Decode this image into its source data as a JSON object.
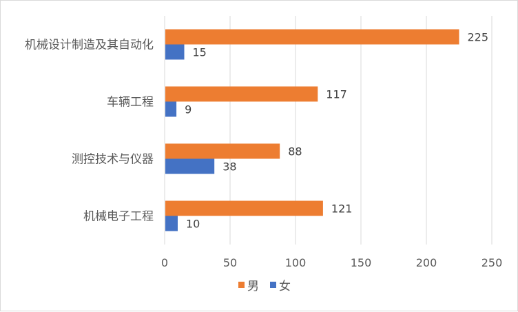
{
  "chart_data": {
    "type": "bar",
    "orientation": "horizontal",
    "categories": [
      "机械设计制造及其自动化",
      "车辆工程",
      "测控技术与仪器",
      "机械电子工程"
    ],
    "series": [
      {
        "name": "男",
        "color": "#ED7D31",
        "values": [
          225,
          117,
          88,
          121
        ]
      },
      {
        "name": "女",
        "color": "#4472C4",
        "values": [
          15,
          9,
          38,
          10
        ]
      }
    ],
    "x_ticks": [
      0,
      50,
      100,
      150,
      200,
      250
    ],
    "xlim": [
      0,
      250
    ],
    "grid": "vertical",
    "legend_position": "bottom",
    "title": "",
    "xlabel": "",
    "ylabel": ""
  }
}
